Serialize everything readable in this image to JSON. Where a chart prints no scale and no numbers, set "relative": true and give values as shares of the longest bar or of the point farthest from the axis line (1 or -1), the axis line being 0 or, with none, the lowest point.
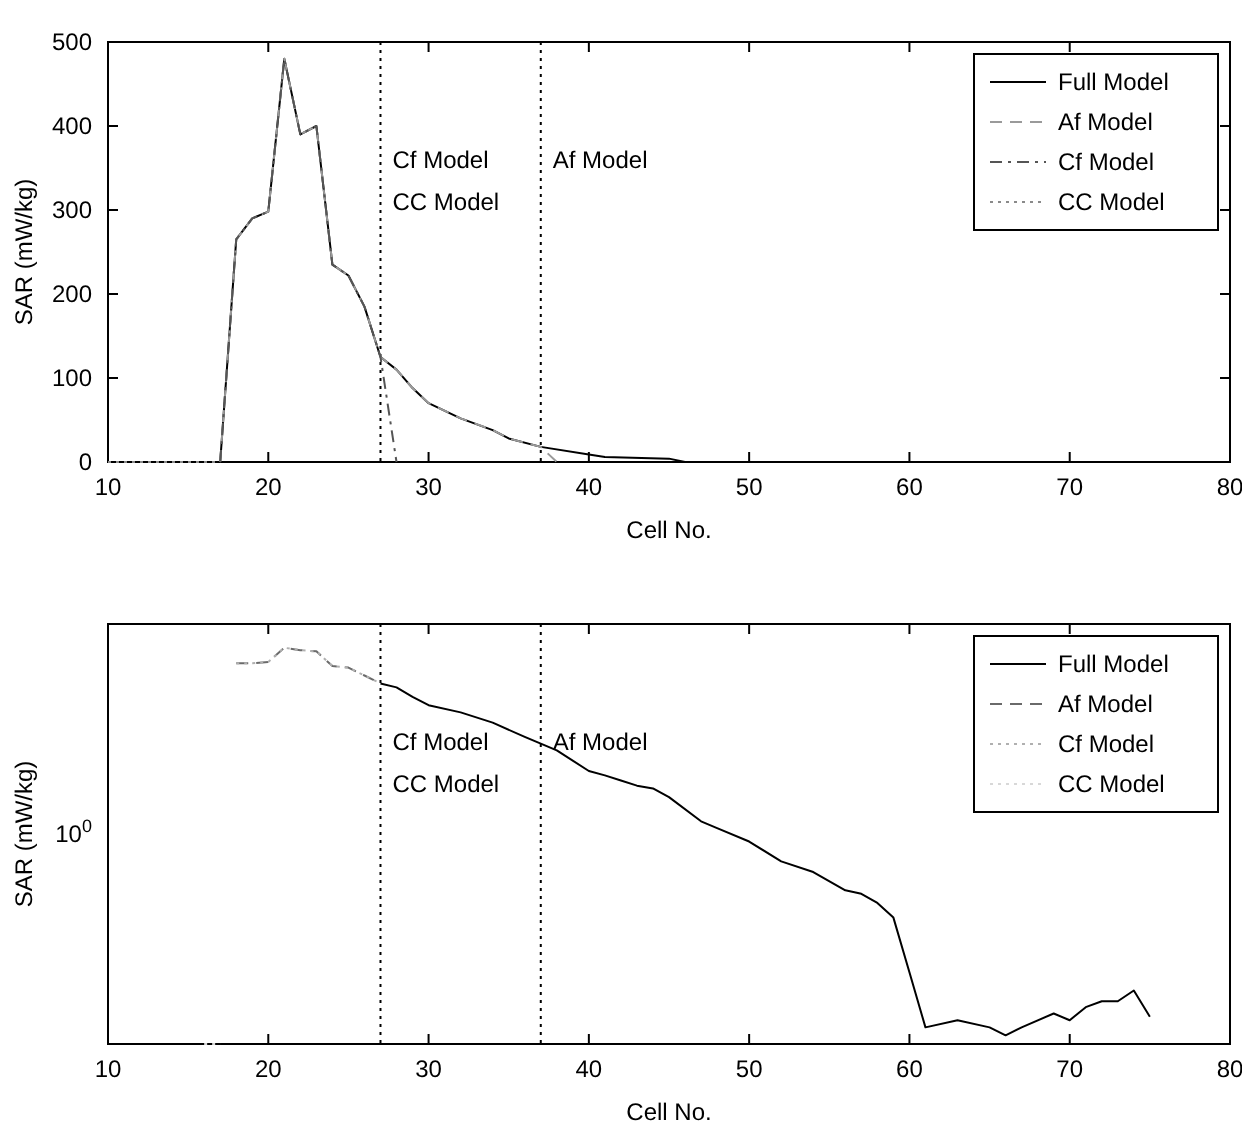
{
  "chart_data": [
    {
      "type": "line",
      "xlabel": "Cell No.",
      "ylabel": "SAR (mW/kg)",
      "xlim": [
        10,
        80
      ],
      "ylim": [
        0,
        500
      ],
      "xticks": [
        10,
        20,
        30,
        40,
        50,
        60,
        70,
        80
      ],
      "yticks": [
        0,
        100,
        200,
        300,
        400,
        500
      ],
      "legend": "top right",
      "grid": false,
      "ref_lines": [
        {
          "axis": "x",
          "value": 27,
          "label": "Cf Model\nCC Model",
          "line_style": "dotted",
          "color": "#000000"
        },
        {
          "axis": "x",
          "value": 37,
          "label": "Af Model",
          "line_style": "dotted",
          "color": "#000000"
        }
      ],
      "series": [
        {
          "name": "Full Model",
          "color": "#000000",
          "line_style": "solid",
          "x": [
            17,
            18,
            19,
            20,
            21,
            22,
            23,
            24,
            25,
            26,
            27,
            28,
            29,
            30,
            32,
            34,
            35,
            37,
            40,
            41,
            45,
            46
          ],
          "values": [
            0,
            265,
            290,
            298,
            480,
            390,
            400,
            235,
            222,
            185,
            125,
            110,
            88,
            70,
            52,
            38,
            28,
            18,
            9,
            6,
            4,
            0
          ]
        },
        {
          "name": "Af Model",
          "color": "#9a9a9a",
          "line_style": "dashed",
          "x": [
            17,
            18,
            19,
            20,
            21,
            22,
            23,
            24,
            25,
            26,
            27,
            28,
            29,
            30,
            32,
            34,
            35,
            37,
            38
          ],
          "values": [
            0,
            265,
            290,
            298,
            480,
            390,
            400,
            235,
            222,
            185,
            125,
            110,
            88,
            70,
            52,
            38,
            28,
            18,
            0
          ]
        },
        {
          "name": "Cf Model",
          "color": "#555555",
          "line_style": "dashdot",
          "x": [
            17,
            18,
            19,
            20,
            21,
            22,
            23,
            24,
            25,
            26,
            27,
            28
          ],
          "values": [
            0,
            265,
            290,
            298,
            480,
            390,
            400,
            235,
            222,
            185,
            125,
            0
          ]
        },
        {
          "name": "CC Model",
          "color": "#8a8a8a",
          "line_style": "dotted",
          "x": [
            10,
            17
          ],
          "values": [
            0,
            0
          ]
        }
      ]
    },
    {
      "type": "line",
      "relative": true,
      "annotations": [
        "10$^{0}$"
      ],
      "xlabel": "Cell No.",
      "ylabel": "SAR (mW/kg)",
      "xlim": [
        10,
        80
      ],
      "xticks": [
        10,
        20,
        30,
        40,
        50,
        60,
        70,
        80
      ],
      "legend": "top right",
      "grid": false,
      "ref_lines": [
        {
          "axis": "x",
          "value": 27,
          "label": "Cf Model\nCC Model",
          "line_style": "dotted",
          "color": "#000000"
        },
        {
          "axis": "x",
          "value": 37,
          "label": "Af Model",
          "line_style": "dotted",
          "color": "#000000"
        }
      ],
      "series": [
        {
          "name": "Full Model",
          "color": "#000000",
          "line_style": "solid",
          "x": [
            27,
            28,
            29,
            30,
            32,
            34,
            36,
            37,
            38,
            40,
            41,
            42,
            43,
            44,
            45,
            47,
            48,
            50,
            52,
            54,
            56,
            57,
            58,
            59,
            60,
            61,
            63,
            65,
            66,
            67,
            69,
            70,
            71,
            72,
            73,
            74,
            75
          ],
          "values": [
            0.91,
            0.9,
            0.876,
            0.855,
            0.837,
            0.811,
            0.775,
            0.758,
            0.741,
            0.689,
            0.678,
            0.665,
            0.652,
            0.645,
            0.623,
            0.562,
            0.545,
            0.511,
            0.461,
            0.434,
            0.388,
            0.379,
            0.356,
            0.319,
            0.181,
            0.042,
            0.06,
            0.042,
            0.022,
            0.042,
            0.077,
            0.06,
            0.093,
            0.108,
            0.108,
            0.135,
            0.069
          ]
        },
        {
          "name": "Af Model",
          "color": "#6a6a6a",
          "line_style": "dashed",
          "x": [
            18,
            19,
            20,
            21,
            22,
            23,
            24,
            25,
            26,
            27
          ],
          "values": [
            0.961,
            0.961,
            0.964,
            1,
            0.994,
            0.991,
            0.954,
            0.95,
            0.93,
            0.91
          ]
        },
        {
          "name": "Cf Model",
          "color": "#b0b0b0",
          "line_style": "dotted",
          "x": [
            18,
            19,
            20,
            21,
            22,
            23,
            24,
            25,
            26,
            27
          ],
          "values": [
            0.961,
            0.961,
            0.964,
            1,
            0.994,
            0.991,
            0.954,
            0.95,
            0.93,
            0.91
          ]
        },
        {
          "name": "CC Model",
          "color": "#d8d8d8",
          "line_style": "dotted",
          "x": [
            16,
            17
          ],
          "values": [
            0,
            0
          ]
        }
      ]
    }
  ]
}
